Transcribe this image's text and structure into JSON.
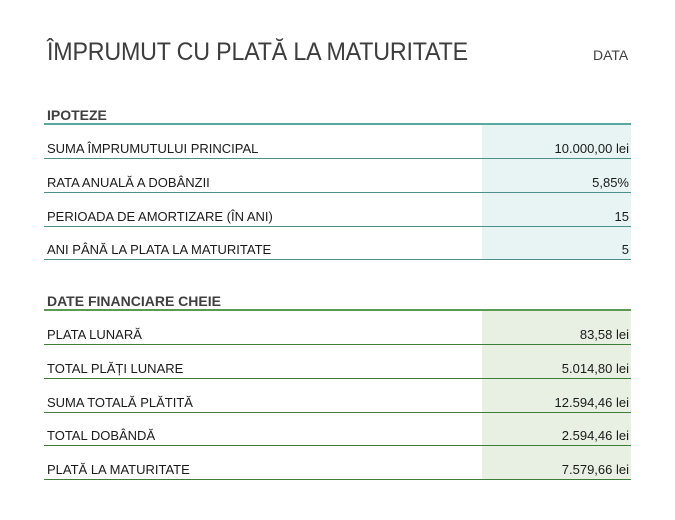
{
  "header": {
    "title": "ÎMPRUMUT CU PLATĂ LA MATURITATE",
    "date_label": "DATA"
  },
  "assumptions": {
    "heading": "IPOTEZE",
    "rows": [
      {
        "label": "SUMA ÎMPRUMUTULUI PRINCIPAL",
        "value": "10.000,00 lei"
      },
      {
        "label": "RATA ANUALĂ A DOBÂNZII",
        "value": "5,85%"
      },
      {
        "label": "PERIOADA DE AMORTIZARE (ÎN ANI)",
        "value": "15"
      },
      {
        "label": "ANI PÂNĂ LA PLATA LA MATURITATE",
        "value": "5"
      }
    ]
  },
  "key_data": {
    "heading": "DATE FINANCIARE CHEIE",
    "rows": [
      {
        "label": "PLATA LUNARĂ",
        "value": "83,58 lei"
      },
      {
        "label": "TOTAL PLĂȚI LUNARE",
        "value": "5.014,80 lei"
      },
      {
        "label": "SUMA TOTALĂ PLĂTITĂ",
        "value": "12.594,46 lei"
      },
      {
        "label": "TOTAL DOBÂNDĂ",
        "value": "2.594,46 lei"
      },
      {
        "label": "PLATĂ LA MATURITATE",
        "value": "7.579,66 lei"
      }
    ]
  },
  "colors": {
    "section1_accent": "#5aa9a0",
    "section1_fill": "#e8f3f3",
    "section2_accent": "#5b9a54",
    "section2_fill": "#e7f0e3"
  }
}
